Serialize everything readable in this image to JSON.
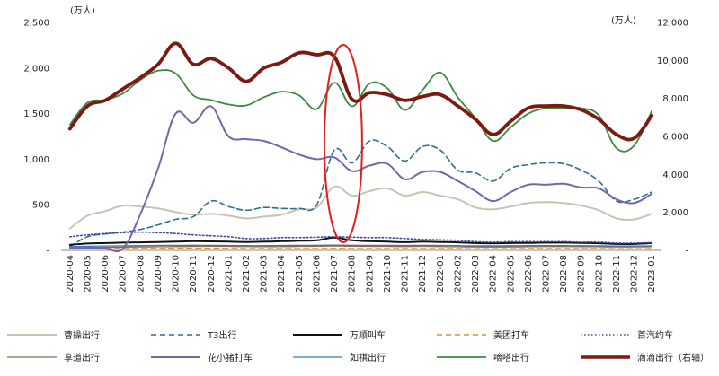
{
  "chart_data": {
    "type": "line",
    "left_unit": "(万人)",
    "right_unit": "(万人)",
    "ylim_left": [
      0,
      2500
    ],
    "ylim_right": [
      0,
      12000
    ],
    "y_ticks_left": [
      "-",
      "500",
      "1,000",
      "1,500",
      "2,000",
      "2,500"
    ],
    "y_ticks_right": [
      "-",
      "2,000",
      "4,000",
      "6,000",
      "8,000",
      "10,000",
      "12,000"
    ],
    "categories": [
      "2020-04",
      "2020-05",
      "2020-06",
      "2020-07",
      "2020-08",
      "2020-09",
      "2020-10",
      "2020-11",
      "2020-12",
      "2021-01",
      "2021-02",
      "2021-03",
      "2021-04",
      "2021-05",
      "2021-06",
      "2021-07",
      "2021-08",
      "2021-09",
      "2021-10",
      "2021-11",
      "2021-12",
      "2022-01",
      "2022-02",
      "2022-03",
      "2022-04",
      "2022-05",
      "2022-06",
      "2022-07",
      "2022-08",
      "2022-09",
      "2022-10",
      "2022-11",
      "2022-12",
      "2023-01"
    ],
    "highlight": {
      "from": "2021-07",
      "to": "2021-08",
      "color": "#e02020"
    },
    "series": [
      {
        "name": "曹操出行",
        "axis": "left",
        "color": "#c8c4b4",
        "style": "solid",
        "width": 2,
        "values": [
          240,
          380,
          430,
          490,
          480,
          460,
          420,
          390,
          400,
          380,
          350,
          370,
          390,
          450,
          470,
          700,
          600,
          650,
          680,
          600,
          640,
          600,
          560,
          470,
          450,
          480,
          520,
          530,
          520,
          490,
          440,
          350,
          340,
          400
        ]
      },
      {
        "name": "T3出行",
        "axis": "left",
        "color": "#2f6f8f",
        "style": "dash",
        "width": 1.6,
        "values": [
          40,
          150,
          180,
          200,
          230,
          280,
          340,
          370,
          540,
          480,
          440,
          470,
          460,
          460,
          500,
          1100,
          960,
          1200,
          1140,
          980,
          1140,
          1100,
          880,
          850,
          760,
          900,
          940,
          960,
          950,
          880,
          760,
          540,
          560,
          640
        ]
      },
      {
        "name": "万顺叫车",
        "axis": "left",
        "color": "#111111",
        "style": "solid",
        "width": 2,
        "values": [
          60,
          75,
          80,
          85,
          88,
          92,
          95,
          100,
          98,
          95,
          92,
          95,
          100,
          105,
          110,
          140,
          110,
          100,
          95,
          90,
          95,
          92,
          88,
          80,
          78,
          80,
          82,
          85,
          85,
          82,
          78,
          70,
          70,
          80
        ]
      },
      {
        "name": "美团打车",
        "axis": "left",
        "color": "#e0902a",
        "style": "dash",
        "width": 1.4,
        "values": [
          18,
          20,
          22,
          22,
          22,
          22,
          23,
          23,
          23,
          22,
          20,
          20,
          20,
          20,
          20,
          22,
          21,
          20,
          20,
          20,
          20,
          20,
          20,
          19,
          19,
          19,
          20,
          20,
          20,
          20,
          20,
          19,
          19,
          20
        ]
      },
      {
        "name": "首汽约车",
        "axis": "left",
        "color": "#3a4aa0",
        "style": "dot",
        "width": 1.6,
        "values": [
          150,
          170,
          185,
          195,
          200,
          195,
          185,
          170,
          160,
          150,
          130,
          130,
          140,
          140,
          145,
          150,
          145,
          140,
          140,
          130,
          120,
          115,
          110,
          95,
          90,
          95,
          95,
          95,
          95,
          90,
          90,
          80,
          80,
          85
        ]
      },
      {
        "name": "享道出行",
        "axis": "left",
        "color": "#8a6a4a",
        "style": "solid",
        "width": 1.3,
        "values": [
          30,
          32,
          34,
          36,
          38,
          40,
          42,
          44,
          45,
          44,
          42,
          40,
          42,
          44,
          45,
          48,
          46,
          44,
          44,
          42,
          44,
          42,
          40,
          38,
          37,
          38,
          40,
          42,
          42,
          41,
          40,
          38,
          38,
          40
        ]
      },
      {
        "name": "花小猪打车",
        "axis": "left",
        "color": "#7b63a8",
        "style": "solid",
        "width": 2,
        "values": [
          20,
          20,
          20,
          20,
          400,
          900,
          1500,
          1400,
          1580,
          1250,
          1220,
          1200,
          1130,
          1050,
          1000,
          1020,
          870,
          930,
          950,
          780,
          860,
          860,
          760,
          650,
          540,
          640,
          720,
          720,
          730,
          690,
          680,
          560,
          520,
          620
        ]
      },
      {
        "name": "如祺出行",
        "axis": "left",
        "color": "#3a78c8",
        "style": "solid",
        "width": 1.3,
        "values": [
          40,
          45,
          48,
          50,
          52,
          54,
          55,
          56,
          55,
          54,
          52,
          52,
          54,
          55,
          56,
          58,
          56,
          55,
          55,
          54,
          55,
          54,
          52,
          50,
          50,
          51,
          52,
          52,
          52,
          51,
          50,
          48,
          48,
          50
        ]
      },
      {
        "name": "嘀嗒出行",
        "axis": "left",
        "color": "#3f8a3f",
        "style": "solid",
        "width": 1.8,
        "values": [
          1380,
          1620,
          1650,
          1720,
          1870,
          1970,
          1940,
          1700,
          1650,
          1600,
          1590,
          1680,
          1740,
          1700,
          1550,
          1840,
          1580,
          1830,
          1780,
          1540,
          1760,
          1950,
          1680,
          1450,
          1200,
          1350,
          1500,
          1560,
          1560,
          1560,
          1480,
          1120,
          1150,
          1530
        ]
      },
      {
        "name": "滴滴出行（右轴）",
        "axis": "right",
        "color": "#7a1a12",
        "style": "solid",
        "width": 3.8,
        "values": [
          6400,
          7600,
          7900,
          8500,
          9100,
          9800,
          10900,
          9800,
          10100,
          9600,
          8900,
          9600,
          9900,
          10400,
          10300,
          10200,
          7950,
          8300,
          8200,
          7900,
          8100,
          8200,
          7600,
          6900,
          6100,
          6800,
          7500,
          7600,
          7600,
          7400,
          6900,
          6100,
          5900,
          7100
        ]
      }
    ]
  }
}
